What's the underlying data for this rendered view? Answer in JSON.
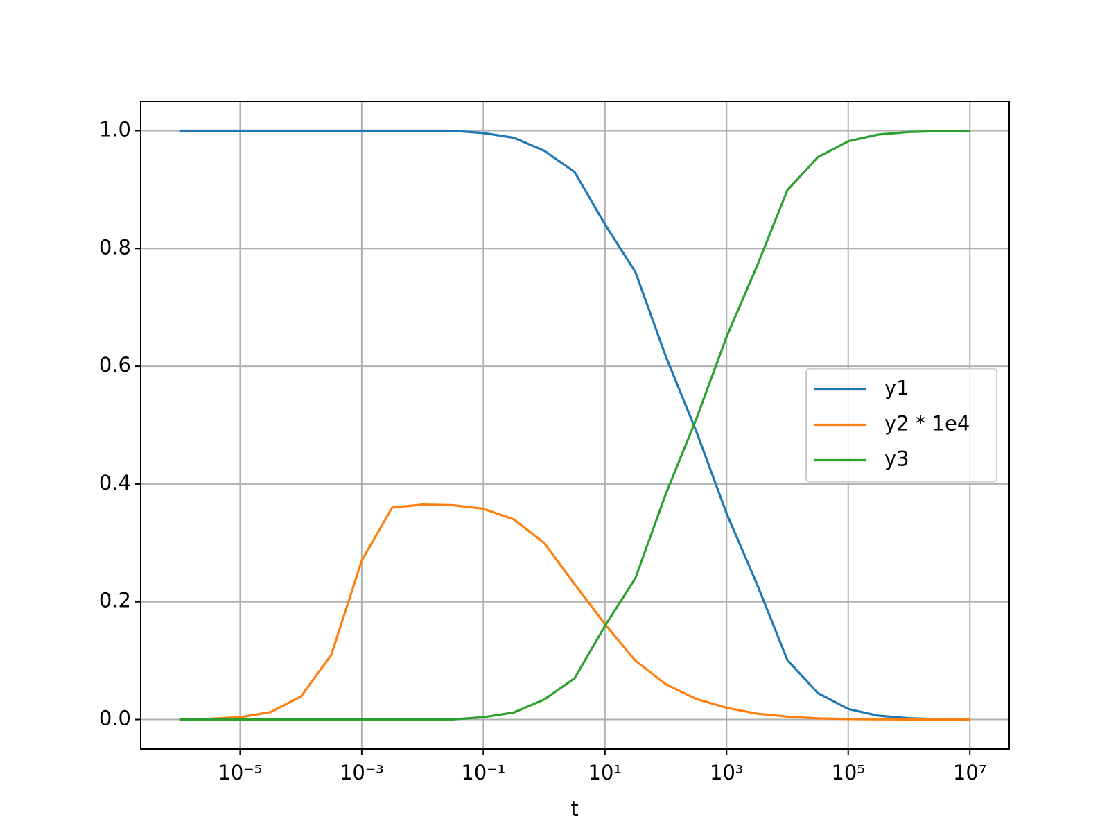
{
  "chart_data": {
    "type": "line",
    "x_label": "t",
    "xscale": "log",
    "grid": true,
    "legend_position": "center right",
    "x": [
      1e-06,
      3.162e-06,
      1e-05,
      3.162e-05,
      0.0001,
      0.0003162,
      0.001,
      0.003162,
      0.01,
      0.03162,
      0.1,
      0.3162,
      1,
      3.162,
      10,
      31.62,
      100,
      316.2,
      1000,
      3162,
      10000,
      31620,
      100000,
      316200,
      1000000,
      3162000,
      10000000
    ],
    "series": [
      {
        "name": "y1",
        "color": "#1f77b4",
        "values": [
          1,
          1,
          1,
          1,
          1,
          1,
          1,
          1,
          1,
          0.9999,
          0.996,
          0.988,
          0.966,
          0.93,
          0.841,
          0.76,
          0.617,
          0.49,
          0.35,
          0.23,
          0.101,
          0.045,
          0.018,
          0.0065,
          0.0022,
          0.0007,
          0.0002
        ]
      },
      {
        "name": "y2 * 1e4",
        "color": "#ff7f0e",
        "values": [
          0.0004,
          0.0013,
          0.004,
          0.0126,
          0.039,
          0.11,
          0.27,
          0.36,
          0.365,
          0.364,
          0.358,
          0.34,
          0.3,
          0.23,
          0.162,
          0.1,
          0.06,
          0.035,
          0.02,
          0.01,
          0.005,
          0.002,
          0.0008,
          0.0003,
          0.0001,
          3e-05,
          1e-05
        ]
      },
      {
        "name": "y3",
        "color": "#2ca02c",
        "values": [
          0,
          0,
          0,
          0,
          0,
          0,
          0,
          0,
          0,
          0.0001,
          0.004,
          0.012,
          0.034,
          0.07,
          0.159,
          0.24,
          0.383,
          0.51,
          0.65,
          0.77,
          0.899,
          0.955,
          0.982,
          0.9935,
          0.9978,
          0.9993,
          0.9998
        ]
      }
    ],
    "xlim": [
      2.32e-07,
      44400000.0
    ],
    "xticks": [
      {
        "value": 1e-05,
        "label": "10⁻⁵"
      },
      {
        "value": 0.001,
        "label": "10⁻³"
      },
      {
        "value": 0.1,
        "label": "10⁻¹"
      },
      {
        "value": 10,
        "label": "10¹"
      },
      {
        "value": 1000,
        "label": "10³"
      },
      {
        "value": 100000,
        "label": "10⁵"
      },
      {
        "value": 10000000,
        "label": "10⁷"
      }
    ],
    "ylim": [
      -0.05,
      1.05
    ],
    "yticks": [
      {
        "value": 0,
        "label": "0.0"
      },
      0.2,
      0.4,
      0.6,
      0.8,
      {
        "value": 1,
        "label": "1.0"
      }
    ]
  }
}
